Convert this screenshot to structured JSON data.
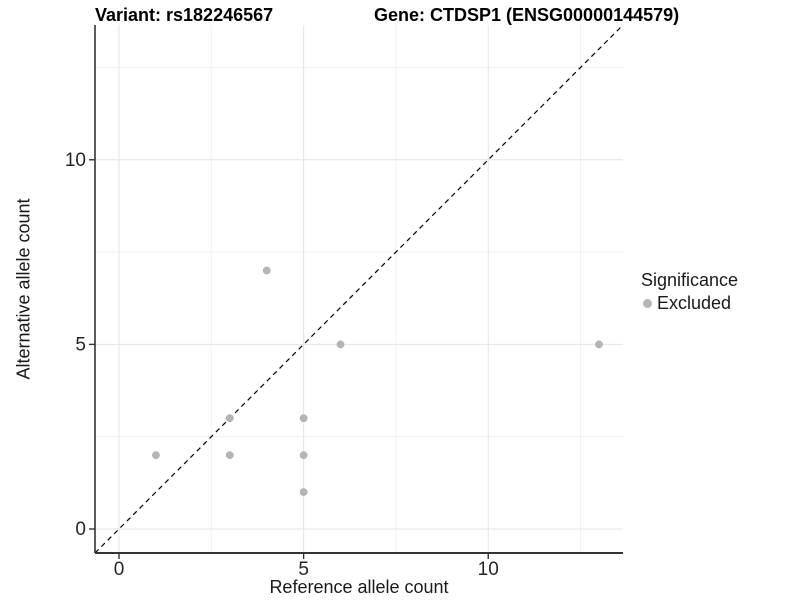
{
  "titles": {
    "left": "Variant: rs182246567",
    "right": "Gene: CTDSP1 (ENSG00000144579)"
  },
  "chart_data": {
    "type": "scatter",
    "title": "Variant: rs182246567  |  Gene: CTDSP1 (ENSG00000144579)",
    "xlabel": "Reference allele count",
    "ylabel": "Alternative allele count",
    "xlim": [
      -0.65,
      13.65
    ],
    "ylim": [
      -0.65,
      13.65
    ],
    "x_ticks": [
      0,
      5,
      10
    ],
    "y_ticks": [
      0,
      5,
      10
    ],
    "x_minor_ticks": [
      2.5,
      7.5,
      12.5
    ],
    "y_minor_ticks": [
      2.5,
      7.5,
      12.5
    ],
    "grid": true,
    "identity_line": {
      "slope": 1,
      "intercept": 0,
      "style": "dashed",
      "color": "#000000"
    },
    "series": [
      {
        "name": "Excluded",
        "color": "#b5b5b5",
        "points": [
          [
            1,
            2
          ],
          [
            3,
            2
          ],
          [
            3,
            3
          ],
          [
            4,
            7
          ],
          [
            5,
            1
          ],
          [
            5,
            2
          ],
          [
            5,
            3
          ],
          [
            6,
            5
          ],
          [
            13,
            5
          ]
        ]
      }
    ],
    "legend": {
      "title": "Significance",
      "position": "right",
      "entries": [
        {
          "label": "Excluded",
          "color": "#b5b5b5"
        }
      ]
    }
  },
  "colors": {
    "point": "#b5b5b5",
    "point_edge": "#a3a3a3",
    "grid_major": "#e4e4e4",
    "grid_minor": "#f1f1f1",
    "axis_line": "#333333",
    "tick_text": "#262626",
    "identity_line": "#000000",
    "background": "#ffffff"
  }
}
